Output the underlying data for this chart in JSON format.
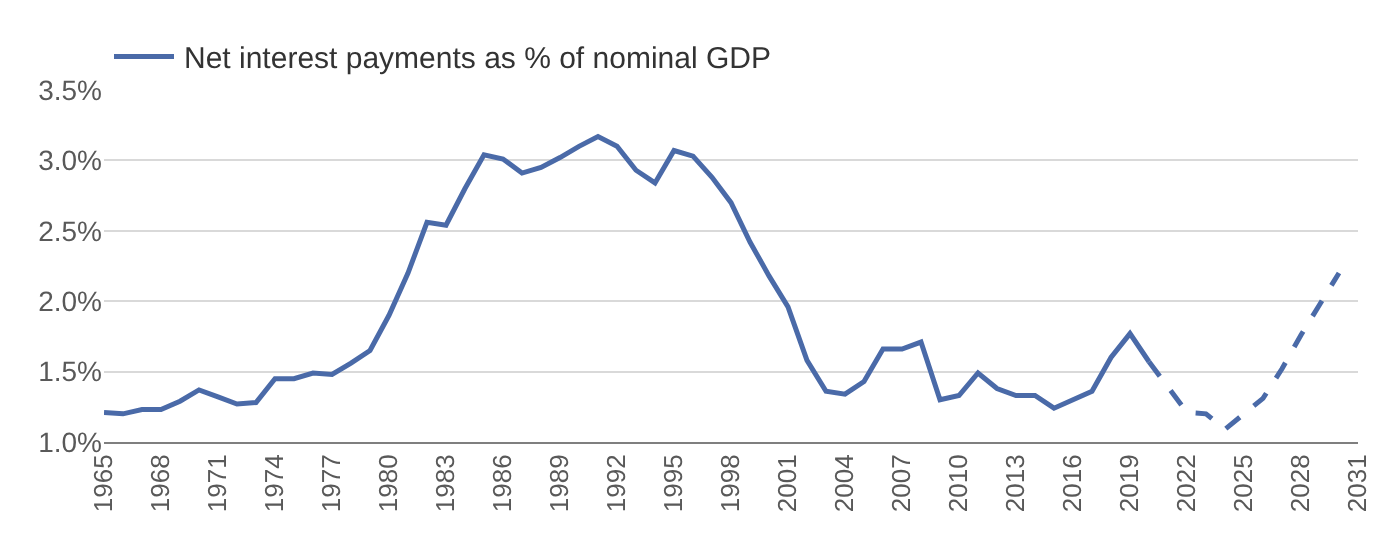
{
  "chart_data": {
    "type": "line",
    "series": [
      {
        "name": "Net interest payments as % of nominal GDP",
        "color": "#4a6aa8",
        "line_style": "solid",
        "x": [
          1965,
          1966,
          1967,
          1968,
          1969,
          1970,
          1971,
          1972,
          1973,
          1974,
          1975,
          1976,
          1977,
          1978,
          1979,
          1980,
          1981,
          1982,
          1983,
          1984,
          1985,
          1986,
          1987,
          1988,
          1989,
          1990,
          1991,
          1992,
          1993,
          1994,
          1995,
          1996,
          1997,
          1998,
          1999,
          2000,
          2001,
          2002,
          2003,
          2004,
          2005,
          2006,
          2007,
          2008,
          2009,
          2010,
          2011,
          2012,
          2013,
          2014,
          2015,
          2016,
          2017,
          2018,
          2019,
          2020
        ],
        "values": [
          1.21,
          1.2,
          1.23,
          1.23,
          1.29,
          1.37,
          1.32,
          1.27,
          1.28,
          1.45,
          1.45,
          1.49,
          1.48,
          1.56,
          1.65,
          1.9,
          2.2,
          2.56,
          2.54,
          2.8,
          3.04,
          3.01,
          2.91,
          2.95,
          3.02,
          3.1,
          3.17,
          3.1,
          2.93,
          2.84,
          3.07,
          3.03,
          2.88,
          2.7,
          2.42,
          2.18,
          1.96,
          1.58,
          1.36,
          1.34,
          1.43,
          1.66,
          1.66,
          1.71,
          1.3,
          1.33,
          1.49,
          1.38,
          1.33,
          1.33,
          1.24,
          1.3,
          1.36,
          1.6,
          1.77,
          1.57
        ]
      },
      {
        "color": "#4a6aa8",
        "line_style": "dashed",
        "x": [
          2020,
          2021,
          2022,
          2023,
          2024,
          2025,
          2026,
          2027,
          2028,
          2029,
          2030
        ],
        "values": [
          1.57,
          1.39,
          1.21,
          1.2,
          1.09,
          1.2,
          1.31,
          1.52,
          1.76,
          1.98,
          2.2
        ]
      }
    ],
    "xlim": [
      1965,
      2031
    ],
    "xticks": [
      1965,
      1968,
      1971,
      1974,
      1977,
      1980,
      1983,
      1986,
      1989,
      1992,
      1995,
      1998,
      2001,
      2004,
      2007,
      2010,
      2013,
      2016,
      2019,
      2022,
      2025,
      2028,
      2031
    ],
    "ylim": [
      1.0,
      3.5
    ],
    "yticks": [
      {
        "value": 1.0,
        "label": "1.0%"
      },
      {
        "value": 1.5,
        "label": "1.5%"
      },
      {
        "value": 2.0,
        "label": "2.0%"
      },
      {
        "value": 2.5,
        "label": "2.5%"
      },
      {
        "value": 3.0,
        "label": "3.0%"
      },
      {
        "value": 3.5,
        "label": "3.5%"
      }
    ],
    "grid": "y",
    "legend": "top left"
  }
}
